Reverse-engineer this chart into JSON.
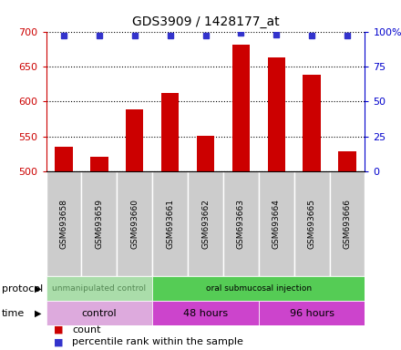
{
  "title": "GDS3909 / 1428177_at",
  "samples": [
    "GSM693658",
    "GSM693659",
    "GSM693660",
    "GSM693661",
    "GSM693662",
    "GSM693663",
    "GSM693664",
    "GSM693665",
    "GSM693666"
  ],
  "count_values": [
    536,
    521,
    589,
    612,
    551,
    681,
    663,
    638,
    529
  ],
  "percentile_values": [
    97,
    97,
    97,
    97,
    97,
    99,
    98,
    97,
    97
  ],
  "ylim_left": [
    500,
    700
  ],
  "ylim_right": [
    0,
    100
  ],
  "yticks_left": [
    500,
    550,
    600,
    650,
    700
  ],
  "yticks_right": [
    0,
    25,
    50,
    75,
    100
  ],
  "bar_color": "#cc0000",
  "dot_color": "#3333cc",
  "protocol_groups": [
    {
      "label": "unmanipulated control",
      "start": 0,
      "end": 3,
      "color": "#aaddaa",
      "text_color": "#558855"
    },
    {
      "label": "oral submucosal injection",
      "start": 3,
      "end": 9,
      "color": "#55cc55",
      "text_color": "#000000"
    }
  ],
  "time_groups": [
    {
      "label": "control",
      "start": 0,
      "end": 3,
      "color": "#ddaadd"
    },
    {
      "label": "48 hours",
      "start": 3,
      "end": 6,
      "color": "#cc44cc"
    },
    {
      "label": "96 hours",
      "start": 6,
      "end": 9,
      "color": "#cc44cc"
    }
  ],
  "legend_count_label": "count",
  "legend_pct_label": "percentile rank within the sample",
  "label_color_left": "#cc0000",
  "label_color_right": "#0000cc",
  "grid_linestyle": "dotted",
  "bar_width": 0.5
}
